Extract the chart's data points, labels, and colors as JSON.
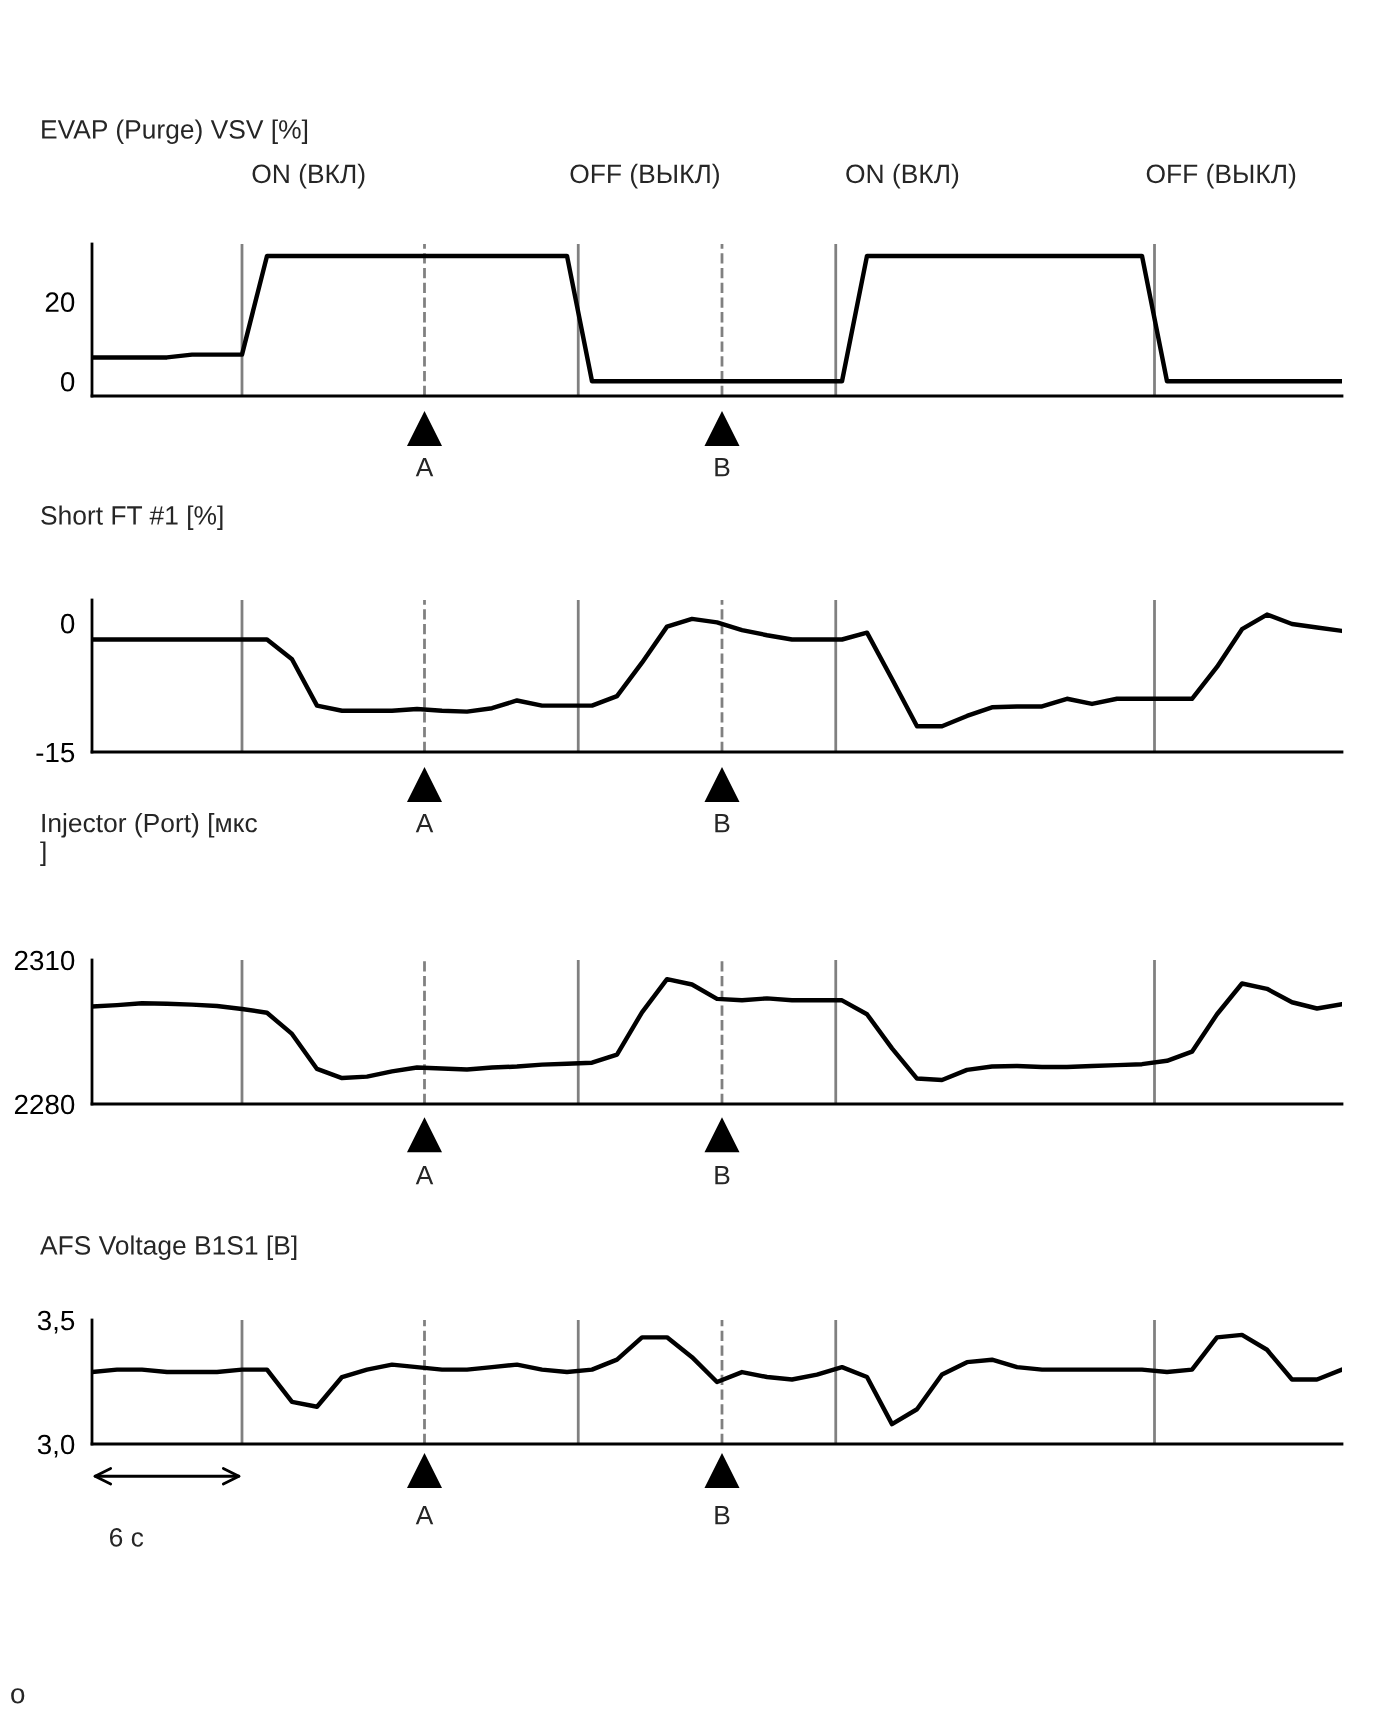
{
  "chart_data": [
    {
      "type": "line",
      "title": "EVAP (Purge) VSV [%]",
      "categories": [
        null,
        null,
        null,
        null,
        null,
        null,
        null,
        null,
        null,
        null,
        null,
        null,
        null,
        null,
        null,
        null,
        null,
        null,
        null,
        null,
        null,
        null,
        null,
        null,
        null,
        null,
        null,
        null,
        null,
        null,
        null,
        null,
        null,
        null,
        null,
        null,
        null,
        null,
        null,
        null,
        null,
        null,
        null,
        null,
        null,
        null,
        null,
        null,
        null,
        null,
        null
      ],
      "ylim": [
        -3.7,
        34.5
      ],
      "yticks": [
        0,
        20
      ],
      "tick_labels": "y",
      "series": [
        {
          "color": "#000000",
          "values": [
            6.0,
            6.0,
            6.0,
            6.0,
            6.7,
            6.7,
            6.7,
            31.5,
            31.5,
            31.5,
            31.5,
            31.5,
            31.5,
            31.5,
            31.5,
            31.5,
            31.5,
            31.5,
            31.5,
            31.5,
            0,
            0,
            0,
            0,
            0,
            0,
            0,
            0,
            0,
            0,
            0,
            31.5,
            31.5,
            31.5,
            31.5,
            31.5,
            31.5,
            31.5,
            31.5,
            31.5,
            31.5,
            31.5,
            31.5,
            0,
            0,
            0,
            0,
            0,
            0,
            0,
            0
          ]
        }
      ],
      "annotations": [
        "ON (ВКЛ)",
        "A",
        "OFF (ВЫКЛ)",
        "B",
        "ON (ВКЛ)",
        "OFF (ВЫКЛ)"
      ]
    },
    {
      "type": "line",
      "title": "Short FT #1 [%]",
      "categories": [
        null,
        null,
        null,
        null,
        null,
        null,
        null,
        null,
        null,
        null,
        null,
        null,
        null,
        null,
        null,
        null,
        null,
        null,
        null,
        null,
        null,
        null,
        null,
        null,
        null,
        null,
        null,
        null,
        null,
        null,
        null,
        null,
        null,
        null,
        null,
        null,
        null,
        null,
        null,
        null,
        null,
        null,
        null,
        null,
        null,
        null,
        null,
        null,
        null,
        null,
        null
      ],
      "ylim": [
        -15,
        2.7
      ],
      "yticks": [
        0,
        -15
      ],
      "tick_labels": "y",
      "series": [
        {
          "color": "#000000",
          "values": [
            -1.9,
            -1.9,
            -1.9,
            -1.9,
            -1.9,
            -1.9,
            -1.9,
            -1.9,
            -4.2,
            -9.6,
            -10.2,
            -10.2,
            -10.2,
            -10.0,
            -10.2,
            -10.3,
            -9.9,
            -9.0,
            -9.6,
            -9.6,
            -9.6,
            -8.5,
            -4.6,
            -0.4,
            0.5,
            0.1,
            -0.8,
            -1.4,
            -1.9,
            -1.9,
            -1.9,
            -1.1,
            -6.5,
            -12.0,
            -12.0,
            -10.8,
            -9.8,
            -9.7,
            -9.7,
            -8.8,
            -9.4,
            -8.8,
            -8.8,
            -8.8,
            -8.8,
            -5.1,
            -0.7,
            1.0,
            -0.1,
            -0.5,
            -0.9
          ]
        }
      ],
      "annotations": [
        "A",
        "B"
      ]
    },
    {
      "type": "line",
      "title": "Injector (Port) [мкс\n]",
      "categories": [
        null,
        null,
        null,
        null,
        null,
        null,
        null,
        null,
        null,
        null,
        null,
        null,
        null,
        null,
        null,
        null,
        null,
        null,
        null,
        null,
        null,
        null,
        null,
        null,
        null,
        null,
        null,
        null,
        null,
        null,
        null,
        null,
        null,
        null,
        null,
        null,
        null,
        null,
        null,
        null,
        null,
        null,
        null,
        null,
        null,
        null,
        null,
        null,
        null,
        null,
        null
      ],
      "ylim": [
        2280,
        2310
      ],
      "yticks": [
        2280,
        2310
      ],
      "tick_labels": "y",
      "series": [
        {
          "color": "#000000",
          "values": [
            2300.3,
            2300.6,
            2301.0,
            2300.9,
            2300.7,
            2300.4,
            2299.8,
            2299.0,
            2294.6,
            2287.3,
            2285.4,
            2285.7,
            2286.8,
            2287.6,
            2287.4,
            2287.2,
            2287.6,
            2287.8,
            2288.2,
            2288.4,
            2288.6,
            2290.3,
            2299.1,
            2306.0,
            2304.9,
            2301.9,
            2301.6,
            2302.0,
            2301.6,
            2301.6,
            2301.6,
            2298.7,
            2291.6,
            2285.3,
            2285.0,
            2287.1,
            2287.8,
            2287.9,
            2287.7,
            2287.7,
            2287.9,
            2288.1,
            2288.3,
            2289.0,
            2290.9,
            2298.7,
            2305.1,
            2304.0,
            2301.2,
            2299.9,
            2300.8
          ]
        }
      ],
      "annotations": [
        "A",
        "B"
      ]
    },
    {
      "type": "line",
      "title": "AFS Voltage B1S1 [В]",
      "categories": [
        null,
        null,
        null,
        null,
        null,
        null,
        null,
        null,
        null,
        null,
        null,
        null,
        null,
        null,
        null,
        null,
        null,
        null,
        null,
        null,
        null,
        null,
        null,
        null,
        null,
        null,
        null,
        null,
        null,
        null,
        null,
        null,
        null,
        null,
        null,
        null,
        null,
        null,
        null,
        null,
        null,
        null,
        null,
        null,
        null,
        null,
        null,
        null,
        null,
        null,
        null
      ],
      "ylim": [
        3.0,
        3.5
      ],
      "yticks": [
        {
          "value": 3.0,
          "label": "3,0"
        },
        {
          "value": 3.5,
          "label": "3,5"
        }
      ],
      "tick_labels": "y",
      "series": [
        {
          "color": "#000000",
          "values": [
            3.29,
            3.3,
            3.3,
            3.29,
            3.29,
            3.29,
            3.3,
            3.3,
            3.17,
            3.15,
            3.27,
            3.3,
            3.32,
            3.31,
            3.3,
            3.3,
            3.31,
            3.32,
            3.3,
            3.29,
            3.3,
            3.34,
            3.43,
            3.43,
            3.35,
            3.25,
            3.29,
            3.27,
            3.26,
            3.28,
            3.31,
            3.27,
            3.08,
            3.14,
            3.28,
            3.33,
            3.34,
            3.31,
            3.3,
            3.3,
            3.3,
            3.3,
            3.3,
            3.29,
            3.3,
            3.43,
            3.44,
            3.38,
            3.26,
            3.26,
            3.3
          ]
        }
      ],
      "annotations": [
        "A",
        "B",
        "6 с",
        "o"
      ]
    }
  ]
}
